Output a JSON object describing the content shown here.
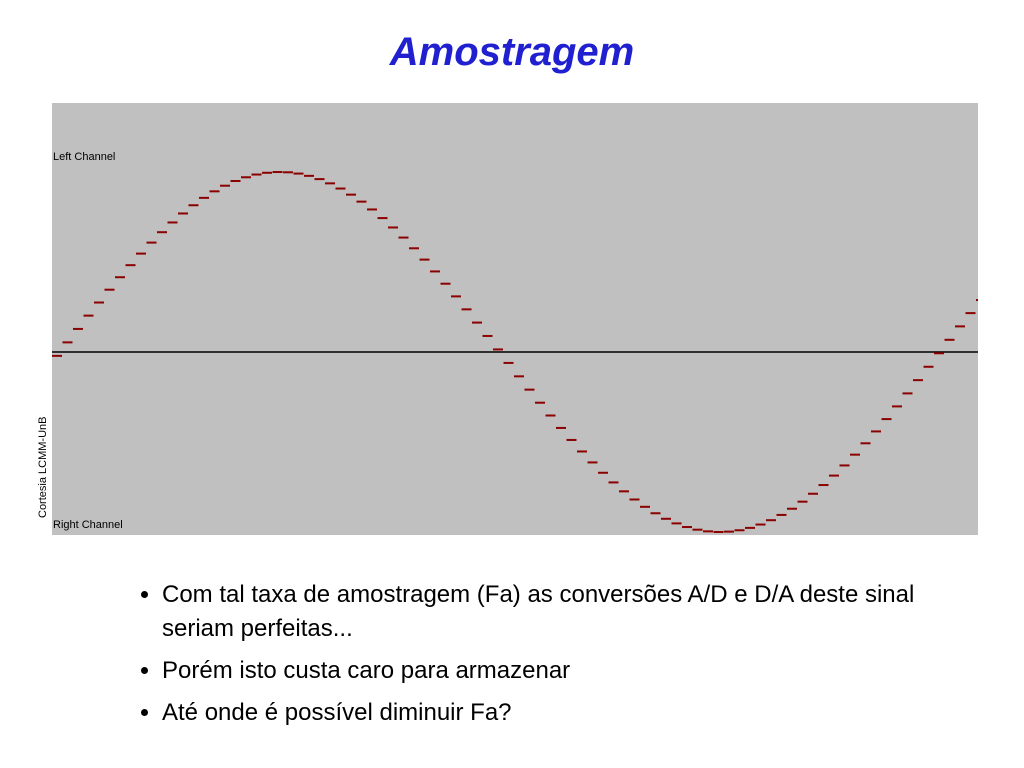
{
  "title": "Amostragem",
  "figure": {
    "left_label": "Left Channel",
    "right_label": "Right Channel",
    "credit": "Cortesia LCMM-UnB"
  },
  "bullets": [
    "Com tal taxa de amostragem (Fa) as conversões A/D e D/A deste sinal seriam perfeitas...",
    "Porém isto custa caro para armazenar",
    "Até onde é possível diminuir Fa?"
  ]
}
